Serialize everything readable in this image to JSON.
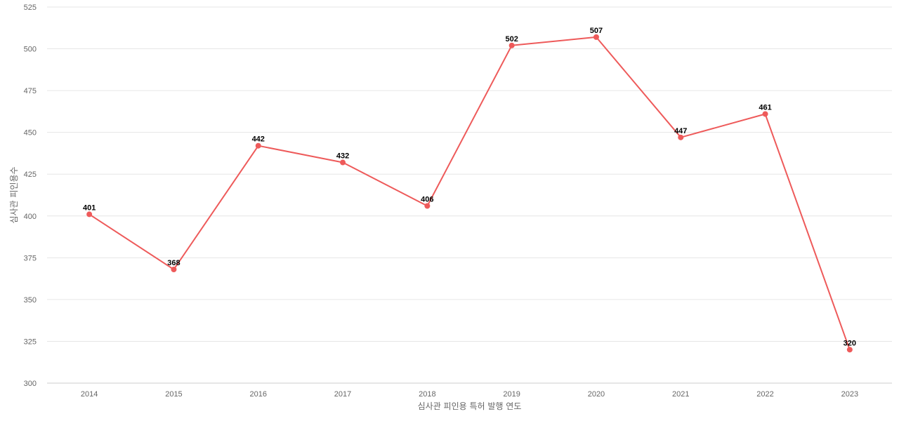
{
  "chart_data": {
    "type": "line",
    "xlabel": "심사관 피인용 특허 발행 연도",
    "ylabel": "심사관 피인용수",
    "categories": [
      "2014",
      "2015",
      "2016",
      "2017",
      "2018",
      "2019",
      "2020",
      "2021",
      "2022",
      "2023"
    ],
    "series": [
      {
        "values": [
          401,
          368,
          442,
          432,
          406,
          502,
          507,
          447,
          461,
          320
        ]
      }
    ],
    "ylim": [
      300,
      525
    ],
    "yticks": [
      300,
      325,
      350,
      375,
      400,
      425,
      450,
      475,
      500,
      525
    ],
    "grid": true,
    "data_labels": true,
    "line_color": "#ee5a5a",
    "grid_color": "#e6e6e6"
  }
}
